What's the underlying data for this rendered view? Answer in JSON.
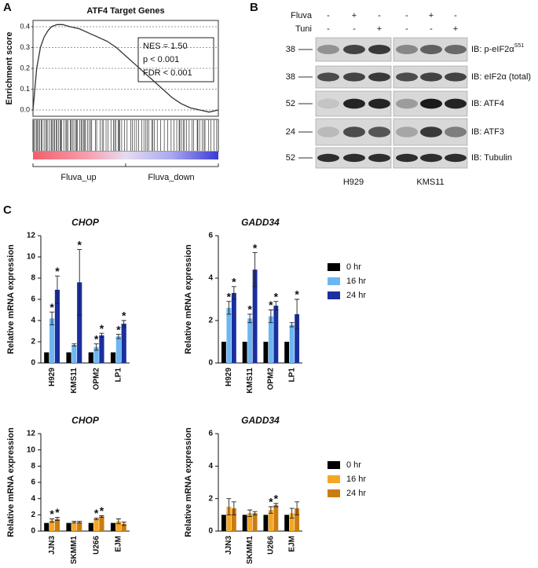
{
  "panel_labels": [
    "A",
    "B",
    "C"
  ],
  "blot": {
    "treatments": [
      {
        "name": "Fluva",
        "signs": [
          "-",
          "+",
          "-",
          "-",
          "+",
          "-"
        ]
      },
      {
        "name": "Tuni",
        "signs": [
          "-",
          "-",
          "+",
          "-",
          "-",
          "+"
        ]
      }
    ],
    "rows": [
      {
        "mw": 38,
        "label": "IB: p-eIF2α",
        "superscript": "S51"
      },
      {
        "mw": 38,
        "label": "IB: eIF2α (total)"
      },
      {
        "mw": 52,
        "label": "IB: ATF4"
      },
      {
        "mw": 24,
        "label": "IB: ATF3"
      },
      {
        "mw": 52,
        "label": "IB: Tubulin"
      }
    ],
    "cell_lines": [
      "H929",
      "KMS11"
    ]
  },
  "chart_data": [
    {
      "type": "line",
      "title": "ATF4 Target Genes",
      "y_label": "Enrichment score",
      "x": [
        0,
        2,
        4,
        6,
        8,
        10,
        13,
        16,
        20,
        25,
        30,
        35,
        40,
        45,
        50,
        55,
        60,
        65,
        70,
        75,
        80,
        85,
        90,
        95,
        100
      ],
      "values": [
        0,
        0.2,
        0.3,
        0.35,
        0.38,
        0.4,
        0.41,
        0.41,
        0.4,
        0.39,
        0.37,
        0.35,
        0.33,
        0.3,
        0.26,
        0.22,
        0.18,
        0.14,
        0.1,
        0.06,
        0.03,
        0.01,
        0,
        -0.01,
        0
      ],
      "xlim": [
        0,
        100
      ],
      "ylim": [
        -0.03,
        0.43
      ],
      "yticks": [
        {
          "value": 0,
          "label": "0.0"
        },
        0.1,
        0.2,
        0.3,
        0.4
      ],
      "grid": true,
      "color": "#333333",
      "annotations": [
        "NES = 1.50",
        "p < 0.001",
        "FDR < 0.001"
      ],
      "group_labels": [
        "Fluva_up",
        "Fluva_down"
      ]
    },
    {
      "type": "bar",
      "title": "CHOP",
      "y_label": "Relative mRNA expression",
      "categories": [
        "H929",
        "KMS11",
        "OPM2",
        "LP1"
      ],
      "ylim": [
        0,
        12
      ],
      "yticks": [
        0,
        2,
        4,
        6,
        8,
        10,
        12
      ],
      "series": [
        {
          "name": "0 hr",
          "color": "#000000",
          "values": [
            1,
            1,
            1,
            1
          ]
        },
        {
          "name": "16 hr",
          "color": "#6cb6f2",
          "values": [
            4.2,
            1.7,
            1.5,
            2.5
          ],
          "errors": [
            0.6,
            0.1,
            0.3,
            0.2
          ],
          "significance": [
            "*",
            null,
            "*",
            "*"
          ]
        },
        {
          "name": "24 hr",
          "color": "#1b2f9e",
          "values": [
            6.9,
            7.6,
            2.6,
            3.7
          ],
          "errors": [
            1.3,
            3.1,
            0.2,
            0.3
          ],
          "significance": [
            "*",
            "*",
            "*",
            "*"
          ]
        }
      ]
    },
    {
      "type": "bar",
      "title": "GADD34",
      "y_label": "Relative mRNA expression",
      "legend": true,
      "categories": [
        "H929",
        "KMS11",
        "OPM2",
        "LP1"
      ],
      "ylim": [
        0,
        6
      ],
      "yticks": [
        0,
        2,
        4,
        6
      ],
      "series": [
        {
          "name": "0 hr",
          "color": "#000000",
          "values": [
            1,
            1,
            1,
            1
          ]
        },
        {
          "name": "16 hr",
          "color": "#6cb6f2",
          "values": [
            2.6,
            2.1,
            2.2,
            1.8
          ],
          "errors": [
            0.3,
            0.2,
            0.3,
            0.1
          ],
          "significance": [
            "*",
            "*",
            "*",
            null
          ]
        },
        {
          "name": "24 hr",
          "color": "#1b2f9e",
          "values": [
            3.3,
            4.4,
            2.7,
            2.3
          ],
          "errors": [
            0.3,
            0.8,
            0.2,
            0.7
          ],
          "significance": [
            "*",
            "*",
            "*",
            "*"
          ]
        }
      ]
    },
    {
      "type": "bar",
      "title": "CHOP",
      "y_label": "Relative mRNA expression",
      "categories": [
        "JJN3",
        "SKMM1",
        "U266",
        "EJM"
      ],
      "ylim": [
        0,
        12
      ],
      "yticks": [
        0,
        2,
        4,
        6,
        8,
        10,
        12
      ],
      "series": [
        {
          "name": "0 hr",
          "color": "#000000",
          "values": [
            1,
            1,
            1,
            1
          ]
        },
        {
          "name": "16 hr",
          "color": "#f5a623",
          "values": [
            1.3,
            1.1,
            1.5,
            1.2
          ],
          "errors": [
            0.2,
            0.1,
            0.1,
            0.3
          ],
          "significance": [
            "*",
            null,
            "*",
            null
          ]
        },
        {
          "name": "24 hr",
          "color": "#c97c12",
          "values": [
            1.5,
            1.1,
            1.8,
            0.9
          ],
          "errors": [
            0.2,
            0.1,
            0.1,
            0.2
          ],
          "significance": [
            "*",
            null,
            "*",
            null
          ]
        }
      ]
    },
    {
      "type": "bar",
      "title": "GADD34",
      "y_label": "Relative mRNA expression",
      "legend": true,
      "categories": [
        "JJN3",
        "SKMM1",
        "U266",
        "EJM"
      ],
      "ylim": [
        0,
        6
      ],
      "yticks": [
        0,
        2,
        4,
        6
      ],
      "series": [
        {
          "name": "0 hr",
          "color": "#000000",
          "values": [
            1,
            1,
            1,
            1
          ]
        },
        {
          "name": "16 hr",
          "color": "#f5a623",
          "values": [
            1.5,
            1.1,
            1.3,
            1.1
          ],
          "errors": [
            0.5,
            0.2,
            0.2,
            0.3
          ],
          "significance": [
            null,
            null,
            "*",
            null
          ]
        },
        {
          "name": "24 hr",
          "color": "#c97c12",
          "values": [
            1.4,
            1.1,
            1.6,
            1.4
          ],
          "errors": [
            0.4,
            0.1,
            0.1,
            0.4
          ],
          "significance": [
            null,
            null,
            "*",
            null
          ]
        }
      ]
    }
  ]
}
